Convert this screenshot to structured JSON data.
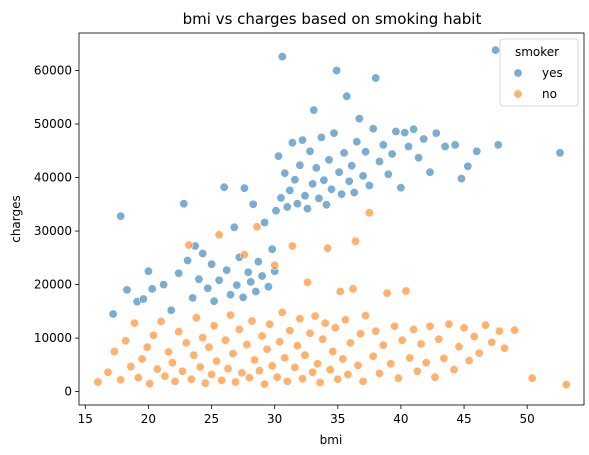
{
  "chart_data": {
    "type": "scatter",
    "title": "bmi vs charges based on smoking habit",
    "xlabel": "bmi",
    "ylabel": "charges",
    "xlim": [
      14.5,
      54.5
    ],
    "ylim": [
      -2500,
      67000
    ],
    "xticks": [
      15,
      20,
      25,
      30,
      35,
      40,
      45,
      50
    ],
    "yticks": [
      0,
      10000,
      20000,
      30000,
      40000,
      50000,
      60000
    ],
    "grid": false,
    "legend": {
      "title": "smoker",
      "placement": "top-right"
    },
    "series": [
      {
        "name": "yes",
        "color": "#1f77b4",
        "points": [
          [
            17.2,
            14500
          ],
          [
            17.8,
            32800
          ],
          [
            18.3,
            19000
          ],
          [
            19.1,
            16800
          ],
          [
            19.6,
            17300
          ],
          [
            20.0,
            22500
          ],
          [
            20.3,
            19200
          ],
          [
            21.2,
            20000
          ],
          [
            21.8,
            15200
          ],
          [
            22.4,
            22100
          ],
          [
            22.8,
            35100
          ],
          [
            23.1,
            24500
          ],
          [
            23.5,
            17500
          ],
          [
            23.7,
            27200
          ],
          [
            24.0,
            21000
          ],
          [
            24.3,
            25800
          ],
          [
            24.7,
            19300
          ],
          [
            25.0,
            23800
          ],
          [
            25.2,
            16900
          ],
          [
            25.6,
            20800
          ],
          [
            26.0,
            38200
          ],
          [
            26.2,
            22700
          ],
          [
            26.5,
            18100
          ],
          [
            26.8,
            30700
          ],
          [
            27.0,
            19900
          ],
          [
            27.2,
            25100
          ],
          [
            27.5,
            17600
          ],
          [
            27.6,
            38000
          ],
          [
            27.9,
            22300
          ],
          [
            28.1,
            20500
          ],
          [
            28.3,
            35000
          ],
          [
            28.5,
            18700
          ],
          [
            28.7,
            24300
          ],
          [
            29.0,
            21600
          ],
          [
            29.2,
            31600
          ],
          [
            29.5,
            19600
          ],
          [
            29.8,
            26600
          ],
          [
            30.0,
            22500
          ],
          [
            30.1,
            33800
          ],
          [
            30.3,
            44000
          ],
          [
            30.5,
            36200
          ],
          [
            30.6,
            62600
          ],
          [
            30.8,
            40800
          ],
          [
            31.0,
            34500
          ],
          [
            31.2,
            37600
          ],
          [
            31.4,
            46500
          ],
          [
            31.6,
            39600
          ],
          [
            31.8,
            35100
          ],
          [
            32.0,
            42300
          ],
          [
            32.2,
            47000
          ],
          [
            32.4,
            36600
          ],
          [
            32.6,
            34200
          ],
          [
            32.8,
            44900
          ],
          [
            33.0,
            38800
          ],
          [
            33.1,
            52600
          ],
          [
            33.3,
            41800
          ],
          [
            33.5,
            36100
          ],
          [
            33.7,
            47500
          ],
          [
            33.9,
            39500
          ],
          [
            34.1,
            34900
          ],
          [
            34.3,
            43300
          ],
          [
            34.5,
            37800
          ],
          [
            34.7,
            48300
          ],
          [
            34.9,
            60000
          ],
          [
            35.1,
            41000
          ],
          [
            35.3,
            36900
          ],
          [
            35.5,
            44600
          ],
          [
            35.7,
            55200
          ],
          [
            35.9,
            39300
          ],
          [
            36.1,
            42200
          ],
          [
            36.3,
            37200
          ],
          [
            36.5,
            46700
          ],
          [
            36.7,
            51000
          ],
          [
            37.0,
            40300
          ],
          [
            37.2,
            44800
          ],
          [
            37.5,
            38500
          ],
          [
            37.8,
            49100
          ],
          [
            38.0,
            58600
          ],
          [
            38.3,
            43000
          ],
          [
            38.6,
            46100
          ],
          [
            39.0,
            40600
          ],
          [
            39.3,
            44400
          ],
          [
            39.6,
            48600
          ],
          [
            40.0,
            38100
          ],
          [
            40.3,
            48400
          ],
          [
            40.6,
            45800
          ],
          [
            41.0,
            49000
          ],
          [
            41.4,
            43700
          ],
          [
            41.8,
            47200
          ],
          [
            42.3,
            41000
          ],
          [
            42.8,
            48300
          ],
          [
            43.5,
            45800
          ],
          [
            44.3,
            46100
          ],
          [
            44.8,
            39800
          ],
          [
            45.3,
            42100
          ],
          [
            46.0,
            44900
          ],
          [
            47.5,
            63800
          ],
          [
            47.7,
            46100
          ],
          [
            52.6,
            44600
          ]
        ]
      },
      {
        "name": "no",
        "color": "#ff7f0e",
        "points": [
          [
            16.0,
            1800
          ],
          [
            16.8,
            3600
          ],
          [
            17.3,
            7500
          ],
          [
            17.8,
            2200
          ],
          [
            18.2,
            9500
          ],
          [
            18.6,
            4700
          ],
          [
            18.9,
            12800
          ],
          [
            19.2,
            2600
          ],
          [
            19.5,
            6100
          ],
          [
            19.9,
            8300
          ],
          [
            20.1,
            1500
          ],
          [
            20.4,
            10500
          ],
          [
            20.7,
            4200
          ],
          [
            21.0,
            13100
          ],
          [
            21.3,
            2900
          ],
          [
            21.6,
            7400
          ],
          [
            21.9,
            5400
          ],
          [
            22.1,
            1900
          ],
          [
            22.4,
            11200
          ],
          [
            22.7,
            3800
          ],
          [
            23.0,
            9100
          ],
          [
            23.2,
            27400
          ],
          [
            23.4,
            2300
          ],
          [
            23.6,
            6800
          ],
          [
            23.8,
            13800
          ],
          [
            24.1,
            4600
          ],
          [
            24.3,
            10100
          ],
          [
            24.5,
            1600
          ],
          [
            24.8,
            8300
          ],
          [
            25.0,
            3200
          ],
          [
            25.2,
            12300
          ],
          [
            25.4,
            5700
          ],
          [
            25.6,
            29300
          ],
          [
            25.8,
            2100
          ],
          [
            26.1,
            9600
          ],
          [
            26.3,
            4300
          ],
          [
            26.5,
            14300
          ],
          [
            26.7,
            7100
          ],
          [
            26.9,
            1800
          ],
          [
            27.2,
            11600
          ],
          [
            27.4,
            3500
          ],
          [
            27.6,
            25600
          ],
          [
            27.8,
            8800
          ],
          [
            28.0,
            2600
          ],
          [
            28.2,
            13200
          ],
          [
            28.4,
            5900
          ],
          [
            28.6,
            30800
          ],
          [
            28.8,
            3900
          ],
          [
            29.0,
            10400
          ],
          [
            29.2,
            1400
          ],
          [
            29.4,
            7900
          ],
          [
            29.6,
            12600
          ],
          [
            29.8,
            4800
          ],
          [
            30.0,
            23600
          ],
          [
            30.2,
            2700
          ],
          [
            30.4,
            9300
          ],
          [
            30.6,
            14800
          ],
          [
            30.8,
            6300
          ],
          [
            31.0,
            1900
          ],
          [
            31.2,
            11400
          ],
          [
            31.4,
            27200
          ],
          [
            31.6,
            4500
          ],
          [
            31.8,
            8600
          ],
          [
            32.0,
            13600
          ],
          [
            32.2,
            2400
          ],
          [
            32.4,
            6800
          ],
          [
            32.6,
            20400
          ],
          [
            32.8,
            10900
          ],
          [
            33.0,
            3600
          ],
          [
            33.2,
            14100
          ],
          [
            33.4,
            5200
          ],
          [
            33.6,
            1700
          ],
          [
            33.8,
            9800
          ],
          [
            34.0,
            12800
          ],
          [
            34.2,
            26800
          ],
          [
            34.4,
            4100
          ],
          [
            34.6,
            7500
          ],
          [
            34.8,
            11900
          ],
          [
            35.0,
            2300
          ],
          [
            35.2,
            18700
          ],
          [
            35.4,
            6100
          ],
          [
            35.6,
            13400
          ],
          [
            35.8,
            3200
          ],
          [
            36.0,
            9100
          ],
          [
            36.2,
            19200
          ],
          [
            36.4,
            28100
          ],
          [
            36.6,
            4900
          ],
          [
            36.8,
            10800
          ],
          [
            37.0,
            1900
          ],
          [
            37.2,
            14200
          ],
          [
            37.5,
            33400
          ],
          [
            37.8,
            6600
          ],
          [
            38.0,
            11300
          ],
          [
            38.3,
            3400
          ],
          [
            38.6,
            8700
          ],
          [
            38.9,
            18400
          ],
          [
            39.2,
            5200
          ],
          [
            39.5,
            12200
          ],
          [
            39.8,
            2500
          ],
          [
            40.1,
            9600
          ],
          [
            40.4,
            18800
          ],
          [
            40.7,
            6300
          ],
          [
            41.0,
            11600
          ],
          [
            41.3,
            3800
          ],
          [
            41.6,
            8900
          ],
          [
            42.0,
            5400
          ],
          [
            42.3,
            12200
          ],
          [
            42.7,
            2700
          ],
          [
            43.0,
            9800
          ],
          [
            43.4,
            6200
          ],
          [
            43.8,
            12600
          ],
          [
            44.2,
            4100
          ],
          [
            44.6,
            8400
          ],
          [
            45.0,
            11900
          ],
          [
            45.4,
            5800
          ],
          [
            45.8,
            10300
          ],
          [
            46.2,
            7200
          ],
          [
            46.7,
            12400
          ],
          [
            47.2,
            9200
          ],
          [
            47.8,
            11300
          ],
          [
            48.2,
            8100
          ],
          [
            49.0,
            11500
          ],
          [
            50.4,
            2500
          ],
          [
            53.1,
            1300
          ]
        ]
      }
    ]
  }
}
